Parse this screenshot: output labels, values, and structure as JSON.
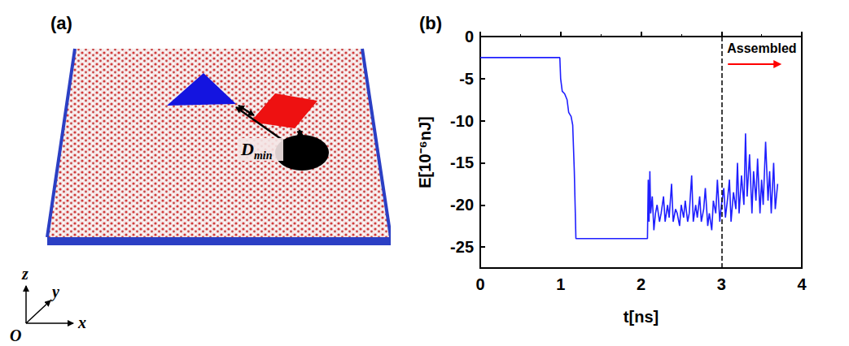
{
  "diagram": {
    "panel_label": "(a)",
    "distance_label": {
      "symbol": "D",
      "subscript": "min"
    },
    "axes_labels": {
      "origin": "O",
      "x": "x",
      "y": "y",
      "z": "z"
    }
  },
  "chart_data": {
    "panel_label": "(b)",
    "type": "line",
    "x_label": "t[ns]",
    "y_label": "E[10⁻⁶nJ]",
    "color": "#1f1fff",
    "x": [
      0,
      0.99,
      1.0,
      1.02,
      1.05,
      1.08,
      1.1,
      1.13,
      1.15,
      1.17,
      1.19,
      2.08,
      2.09,
      2.1,
      2.11,
      2.12,
      2.14,
      2.16,
      2.18,
      2.2,
      2.23,
      2.25,
      2.28,
      2.3,
      2.33,
      2.35,
      2.38,
      2.4,
      2.43,
      2.45,
      2.48,
      2.5,
      2.53,
      2.55,
      2.58,
      2.6,
      2.63,
      2.65,
      2.68,
      2.7,
      2.73,
      2.75,
      2.78,
      2.8,
      2.83,
      2.85,
      2.88,
      2.9,
      2.93,
      2.95,
      2.98,
      3.0,
      3.03,
      3.05,
      3.08,
      3.1,
      3.12,
      3.15,
      3.18,
      3.2,
      3.22,
      3.25,
      3.28,
      3.3,
      3.32,
      3.35,
      3.38,
      3.4,
      3.43,
      3.45,
      3.48,
      3.5,
      3.52,
      3.55,
      3.58,
      3.6,
      3.62,
      3.65,
      3.67,
      3.7
    ],
    "values": [
      -2.5,
      -2.5,
      -5,
      -6.5,
      -6.8,
      -7.5,
      -9,
      -9.5,
      -10.5,
      -16,
      -24,
      -24,
      -17,
      -22,
      -16,
      -21,
      -19,
      -23,
      -21,
      -20,
      -22,
      -21,
      -19,
      -22,
      -20,
      -21.5,
      -17.5,
      -22,
      -20.5,
      -21,
      -22.5,
      -20,
      -21.5,
      -19.5,
      -22,
      -21,
      -16.5,
      -22,
      -20,
      -21.5,
      -19,
      -22,
      -20.5,
      -18,
      -22.5,
      -21,
      -23,
      -19.5,
      -21,
      -17,
      -22,
      -20,
      -18,
      -21.5,
      -19,
      -17,
      -22,
      -18.5,
      -20.5,
      -15,
      -21,
      -16.5,
      -20,
      -11.5,
      -19,
      -14,
      -21,
      -16,
      -19.5,
      -14.5,
      -21,
      -17,
      -20,
      -12.5,
      -19.5,
      -16,
      -21,
      -15,
      -20.5,
      -17.5
    ],
    "xlim": [
      0,
      4
    ],
    "xticks": [
      0,
      1,
      2,
      3,
      4
    ],
    "ylim": [
      -27.5,
      0
    ],
    "yticks": [
      -25,
      -20,
      -15,
      -10,
      -5,
      0
    ],
    "grid": false,
    "annotations": [
      {
        "x": 3,
        "label": "Assembled",
        "color": "#ff0000",
        "line_style": "dashed"
      }
    ]
  }
}
